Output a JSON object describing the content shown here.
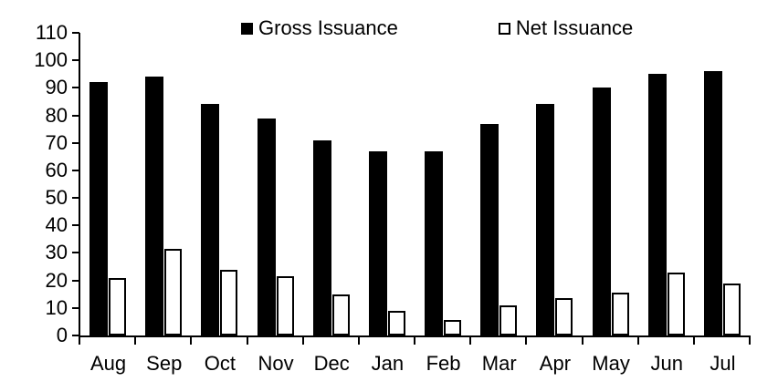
{
  "chart_data": {
    "type": "bar",
    "title": "",
    "xlabel": "",
    "ylabel": "",
    "categories": [
      "Aug",
      "Sep",
      "Oct",
      "Nov",
      "Dec",
      "Jan",
      "Feb",
      "Mar",
      "Apr",
      "May",
      "Jun",
      "Jul"
    ],
    "series": [
      {
        "name": "Gross Issuance",
        "values": [
          92,
          94,
          84,
          79,
          71,
          67,
          67,
          77,
          84,
          90,
          95,
          96
        ],
        "fill": "#000000"
      },
      {
        "name": "Net Issuance",
        "values": [
          21,
          31.5,
          24,
          21.5,
          15,
          9,
          5.5,
          11,
          13.5,
          15.5,
          23,
          19
        ],
        "fill": "#ffffff",
        "stroke": "#000000"
      }
    ],
    "ylim": [
      0,
      110
    ],
    "ytick_step": 10,
    "yticks": [
      0,
      10,
      20,
      30,
      40,
      50,
      60,
      70,
      80,
      90,
      100,
      110
    ],
    "grid": false,
    "legend_position": "top"
  },
  "colors": {
    "background": "#ffffff",
    "axis": "#000000",
    "text": "#000000",
    "gross_fill": "#000000",
    "net_fill": "#ffffff",
    "net_outline": "#000000"
  }
}
